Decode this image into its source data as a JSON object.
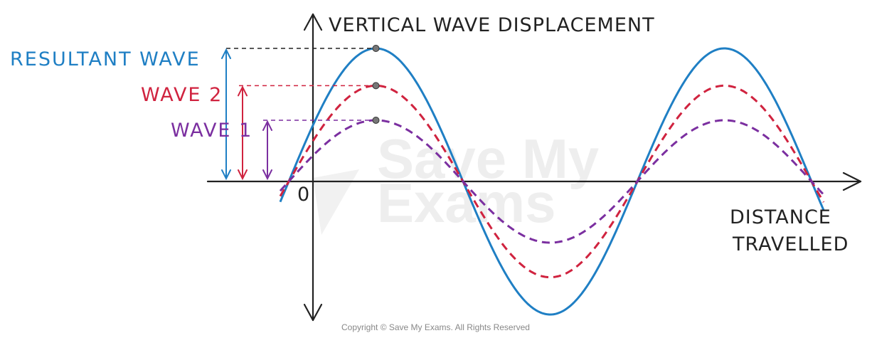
{
  "title": "VERTICAL WAVE DISPLACEMENT",
  "x_axis_label_line1": "DISTANCE",
  "x_axis_label_line2": "TRAVELLED",
  "origin_label": "0",
  "waves": [
    {
      "name": "RESULTANT WAVE",
      "amplitude": 1.0,
      "color": "#1f7fc4",
      "style": "solid"
    },
    {
      "name": "WAVE 2",
      "amplitude": 0.72,
      "color": "#d0233f",
      "style": "dashed"
    },
    {
      "name": "WAVE 1",
      "amplitude": 0.46,
      "color": "#7b2fa0",
      "style": "dashed"
    }
  ],
  "watermark_line1": "Save My",
  "watermark_line2": "Exams",
  "copyright": "Copyright © Save My Exams. All Rights Reserved"
}
